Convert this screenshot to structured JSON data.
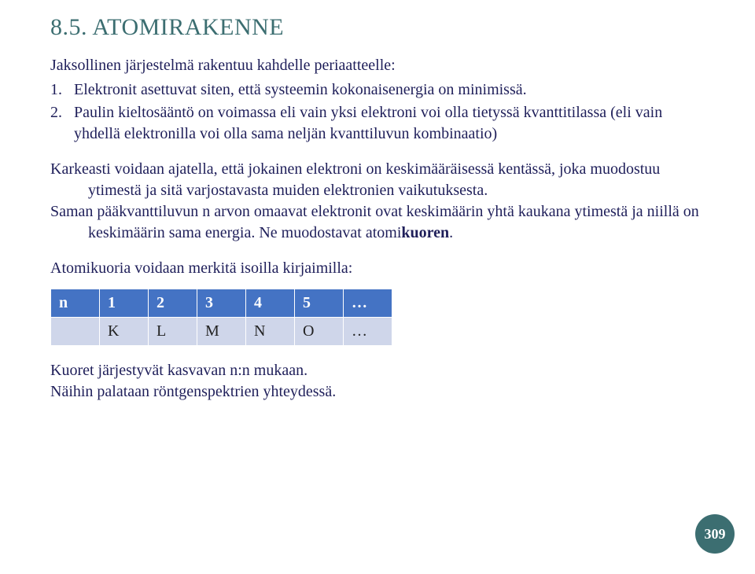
{
  "title": "8.5. ATOMIRAKENNE",
  "intro": "Jaksollinen järjestelmä rakentuu kahdelle periaatteelle:",
  "items": [
    {
      "num": "1.",
      "text": "Elektronit asettuvat siten, että systeemin kokonaisenergia on minimissä."
    },
    {
      "num": "2.",
      "text": "Paulin kieltosääntö on voimassa eli vain yksi elektroni voi olla tietyssä kvanttitilassa (eli vain yhdellä elektronilla voi olla sama neljän kvanttiluvun kombinaatio)"
    }
  ],
  "para1": "Karkeasti voidaan ajatella, että jokainen elektroni on keskimääräisessä kentässä, joka muodostuu ytimestä ja sitä varjostavasta muiden elektronien vaikutuksesta.",
  "para2_pre": "Saman pääkvanttiluvun n arvon omaavat elektronit ovat keskimäärin yhtä kaukana ytimestä ja niillä on keskimäärin sama energia. Ne muodostavat atomi",
  "para2_bold": "kuoren",
  "para2_post": ".",
  "table_intro": "Atomikuoria voidaan merkitä isoilla kirjaimilla:",
  "table": {
    "header": [
      "n",
      "1",
      "2",
      "3",
      "4",
      "5",
      "…"
    ],
    "row": [
      "",
      "K",
      "L",
      "M",
      "N",
      "O",
      "…"
    ],
    "header_bg": "#4473c4",
    "header_fg": "#ffffff",
    "row_bg": "#cfd6ea"
  },
  "closing1": "Kuoret järjestyvät kasvavan n:n mukaan.",
  "closing2": "Näihin palataan röntgenspektrien yhteydessä.",
  "page_number": "309",
  "colors": {
    "title": "#3c6e71",
    "body": "#1f1f5a",
    "badge_bg": "#3c6e71",
    "badge_fg": "#ffffff"
  }
}
